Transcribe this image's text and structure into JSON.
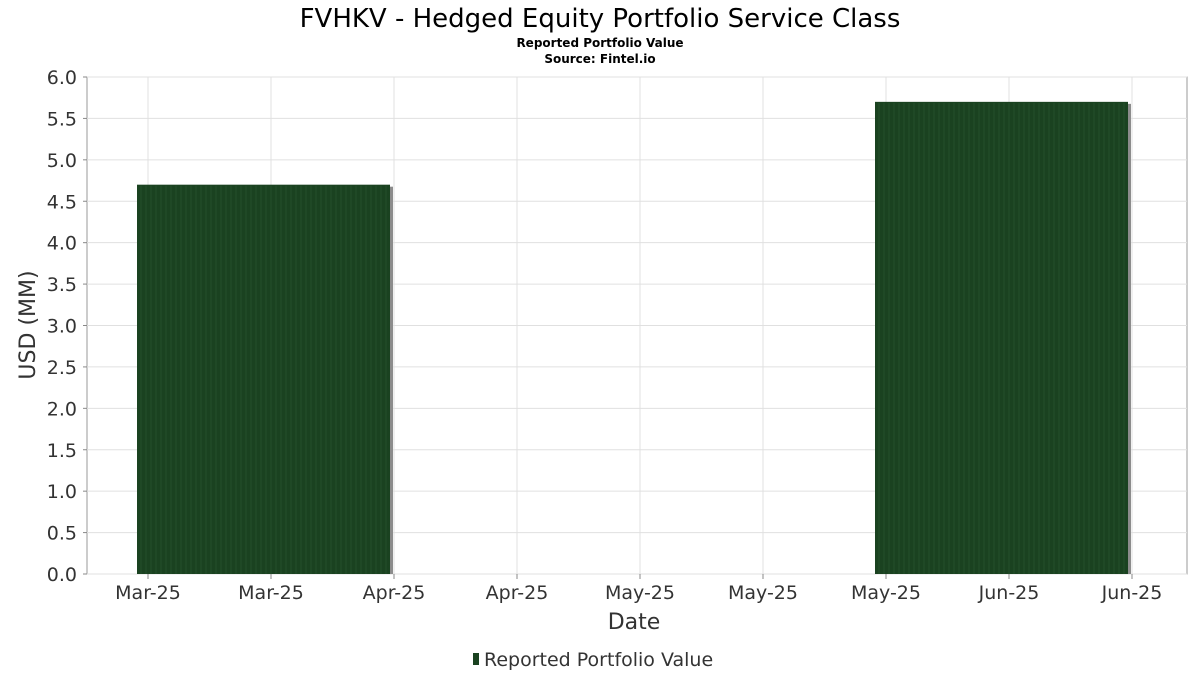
{
  "chart_data": {
    "type": "bar",
    "title": "FVHKV - Hedged Equity Portfolio Service Class",
    "subtitle": "Reported Portfolio Value",
    "source": "Source: Fintel.io",
    "xlabel": "Date",
    "ylabel": "USD (MM)",
    "ylim": [
      0,
      6.0
    ],
    "y_ticks": [
      "0.0",
      "0.5",
      "1.0",
      "1.5",
      "2.0",
      "2.5",
      "3.0",
      "3.5",
      "4.0",
      "4.5",
      "5.0",
      "5.5",
      "6.0"
    ],
    "x_ticks": [
      "Mar-25",
      "Mar-25",
      "Apr-25",
      "Apr-25",
      "May-25",
      "May-25",
      "May-25",
      "Jun-25",
      "Jun-25"
    ],
    "grid": true,
    "legend_position": "bottom",
    "series": [
      {
        "name": "Reported Portfolio Value",
        "color": "#1a4220",
        "bars": [
          {
            "start_tick": 0,
            "end_tick": 2,
            "value": 4.7
          },
          {
            "start_tick": 6,
            "end_tick": 8,
            "value": 5.7
          }
        ]
      }
    ]
  }
}
